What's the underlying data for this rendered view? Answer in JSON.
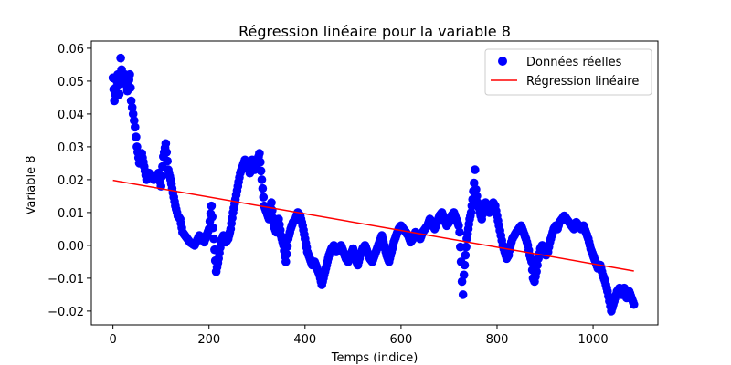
{
  "chart_data": {
    "type": "scatter",
    "title": "Régression linéaire pour la variable 8",
    "xlabel": "Temps (indice)",
    "ylabel": "Variable 8",
    "xlim": [
      -45,
      1135
    ],
    "ylim": [
      -0.0242,
      0.0622
    ],
    "xticks": [
      0,
      200,
      400,
      600,
      800,
      1000
    ],
    "xtick_labels": [
      "0",
      "200",
      "400",
      "600",
      "800",
      "1000"
    ],
    "yticks": [
      -0.02,
      -0.01,
      0.0,
      0.01,
      0.02,
      0.03,
      0.04,
      0.05,
      0.06
    ],
    "ytick_labels": [
      "−0.02",
      "−0.01",
      "0.00",
      "0.01",
      "0.02",
      "0.03",
      "0.04",
      "0.05",
      "0.06"
    ],
    "grid": false,
    "legend_position": "top-right",
    "series": [
      {
        "name": "Données réelles",
        "kind": "scatter",
        "color": "#0000ff",
        "keypoints": [
          [
            0,
            0.051
          ],
          [
            3,
            0.044
          ],
          [
            6,
            0.048
          ],
          [
            10,
            0.052
          ],
          [
            13,
            0.046
          ],
          [
            16,
            0.057
          ],
          [
            20,
            0.05
          ],
          [
            25,
            0.052
          ],
          [
            30,
            0.047
          ],
          [
            35,
            0.052
          ],
          [
            38,
            0.044
          ],
          [
            42,
            0.04
          ],
          [
            46,
            0.036
          ],
          [
            50,
            0.03
          ],
          [
            55,
            0.025
          ],
          [
            60,
            0.028
          ],
          [
            65,
            0.024
          ],
          [
            70,
            0.02
          ],
          [
            75,
            0.022
          ],
          [
            85,
            0.02
          ],
          [
            95,
            0.022
          ],
          [
            100,
            0.018
          ],
          [
            105,
            0.027
          ],
          [
            110,
            0.031
          ],
          [
            115,
            0.023
          ],
          [
            120,
            0.02
          ],
          [
            125,
            0.016
          ],
          [
            130,
            0.012
          ],
          [
            135,
            0.009
          ],
          [
            140,
            0.008
          ],
          [
            145,
            0.004
          ],
          [
            150,
            0.003
          ],
          [
            160,
            0.001
          ],
          [
            170,
            0.0
          ],
          [
            180,
            0.003
          ],
          [
            190,
            0.001
          ],
          [
            200,
            0.005
          ],
          [
            205,
            0.012
          ],
          [
            210,
            0.002
          ],
          [
            215,
            -0.008
          ],
          [
            220,
            -0.004
          ],
          [
            225,
            0.001
          ],
          [
            230,
            0.003
          ],
          [
            235,
            0.001
          ],
          [
            240,
            0.002
          ],
          [
            245,
            0.005
          ],
          [
            250,
            0.01
          ],
          [
            255,
            0.014
          ],
          [
            260,
            0.018
          ],
          [
            265,
            0.022
          ],
          [
            270,
            0.024
          ],
          [
            275,
            0.026
          ],
          [
            280,
            0.025
          ],
          [
            285,
            0.022
          ],
          [
            290,
            0.026
          ],
          [
            295,
            0.023
          ],
          [
            300,
            0.025
          ],
          [
            305,
            0.028
          ],
          [
            310,
            0.02
          ],
          [
            315,
            0.012
          ],
          [
            320,
            0.01
          ],
          [
            325,
            0.008
          ],
          [
            330,
            0.013
          ],
          [
            335,
            0.006
          ],
          [
            340,
            0.004
          ],
          [
            345,
            0.008
          ],
          [
            350,
            0.003
          ],
          [
            355,
            0.0
          ],
          [
            360,
            -0.005
          ],
          [
            365,
            0.002
          ],
          [
            370,
            0.005
          ],
          [
            375,
            0.007
          ],
          [
            380,
            0.008
          ],
          [
            385,
            0.01
          ],
          [
            390,
            0.009
          ],
          [
            395,
            0.006
          ],
          [
            400,
            0.002
          ],
          [
            405,
            -0.002
          ],
          [
            410,
            -0.004
          ],
          [
            415,
            -0.006
          ],
          [
            420,
            -0.005
          ],
          [
            425,
            -0.007
          ],
          [
            430,
            -0.009
          ],
          [
            435,
            -0.012
          ],
          [
            440,
            -0.009
          ],
          [
            445,
            -0.006
          ],
          [
            450,
            -0.003
          ],
          [
            455,
            -0.001
          ],
          [
            460,
            0.0
          ],
          [
            465,
            -0.002
          ],
          [
            470,
            -0.001
          ],
          [
            475,
            0.0
          ],
          [
            480,
            -0.002
          ],
          [
            485,
            -0.004
          ],
          [
            490,
            -0.005
          ],
          [
            495,
            -0.003
          ],
          [
            500,
            -0.001
          ],
          [
            505,
            -0.004
          ],
          [
            510,
            -0.006
          ],
          [
            515,
            -0.003
          ],
          [
            520,
            -0.001
          ],
          [
            525,
            0.0
          ],
          [
            530,
            -0.002
          ],
          [
            535,
            -0.004
          ],
          [
            540,
            -0.005
          ],
          [
            545,
            -0.003
          ],
          [
            550,
            -0.001
          ],
          [
            555,
            0.001
          ],
          [
            560,
            0.003
          ],
          [
            565,
            0.0
          ],
          [
            570,
            -0.003
          ],
          [
            575,
            -0.005
          ],
          [
            580,
            -0.002
          ],
          [
            585,
            0.001
          ],
          [
            590,
            0.003
          ],
          [
            595,
            0.005
          ],
          [
            600,
            0.006
          ],
          [
            605,
            0.005
          ],
          [
            610,
            0.004
          ],
          [
            615,
            0.003
          ],
          [
            620,
            0.001
          ],
          [
            625,
            0.002
          ],
          [
            630,
            0.004
          ],
          [
            635,
            0.003
          ],
          [
            640,
            0.002
          ],
          [
            645,
            0.004
          ],
          [
            650,
            0.005
          ],
          [
            655,
            0.006
          ],
          [
            660,
            0.008
          ],
          [
            665,
            0.007
          ],
          [
            670,
            0.005
          ],
          [
            675,
            0.007
          ],
          [
            680,
            0.009
          ],
          [
            685,
            0.01
          ],
          [
            690,
            0.008
          ],
          [
            695,
            0.006
          ],
          [
            700,
            0.007
          ],
          [
            705,
            0.009
          ],
          [
            710,
            0.01
          ],
          [
            715,
            0.008
          ],
          [
            720,
            0.006
          ],
          [
            722,
            0.004
          ],
          [
            725,
            -0.005
          ],
          [
            727,
            -0.011
          ],
          [
            729,
            -0.015
          ],
          [
            731,
            -0.009
          ],
          [
            734,
            -0.003
          ],
          [
            737,
            0.002
          ],
          [
            740,
            0.005
          ],
          [
            743,
            0.008
          ],
          [
            746,
            0.01
          ],
          [
            749,
            0.014
          ],
          [
            752,
            0.019
          ],
          [
            754,
            0.023
          ],
          [
            756,
            0.017
          ],
          [
            760,
            0.013
          ],
          [
            764,
            0.01
          ],
          [
            768,
            0.008
          ],
          [
            772,
            0.011
          ],
          [
            776,
            0.013
          ],
          [
            780,
            0.012
          ],
          [
            784,
            0.01
          ],
          [
            788,
            0.011
          ],
          [
            792,
            0.013
          ],
          [
            796,
            0.012
          ],
          [
            800,
            0.009
          ],
          [
            804,
            0.006
          ],
          [
            808,
            0.003
          ],
          [
            812,
            0.0
          ],
          [
            816,
            -0.002
          ],
          [
            820,
            -0.004
          ],
          [
            824,
            -0.003
          ],
          [
            828,
            0.0
          ],
          [
            832,
            0.002
          ],
          [
            836,
            0.003
          ],
          [
            840,
            0.004
          ],
          [
            845,
            0.005
          ],
          [
            850,
            0.006
          ],
          [
            855,
            0.004
          ],
          [
            860,
            0.002
          ],
          [
            864,
            0.0
          ],
          [
            868,
            -0.003
          ],
          [
            872,
            -0.005
          ],
          [
            875,
            -0.01
          ],
          [
            878,
            -0.011
          ],
          [
            882,
            -0.008
          ],
          [
            886,
            -0.004
          ],
          [
            890,
            -0.001
          ],
          [
            894,
            0.0
          ],
          [
            898,
            -0.002
          ],
          [
            902,
            -0.003
          ],
          [
            906,
            -0.002
          ],
          [
            910,
            0.001
          ],
          [
            914,
            0.003
          ],
          [
            918,
            0.005
          ],
          [
            922,
            0.006
          ],
          [
            926,
            0.005
          ],
          [
            930,
            0.007
          ],
          [
            935,
            0.008
          ],
          [
            940,
            0.009
          ],
          [
            945,
            0.008
          ],
          [
            950,
            0.007
          ],
          [
            955,
            0.006
          ],
          [
            960,
            0.005
          ],
          [
            965,
            0.007
          ],
          [
            970,
            0.006
          ],
          [
            975,
            0.005
          ],
          [
            980,
            0.006
          ],
          [
            985,
            0.004
          ],
          [
            990,
            0.002
          ],
          [
            995,
            -0.001
          ],
          [
            1000,
            -0.003
          ],
          [
            1005,
            -0.005
          ],
          [
            1010,
            -0.007
          ],
          [
            1015,
            -0.006
          ],
          [
            1020,
            -0.009
          ],
          [
            1025,
            -0.011
          ],
          [
            1030,
            -0.014
          ],
          [
            1034,
            -0.017
          ],
          [
            1038,
            -0.02
          ],
          [
            1042,
            -0.018
          ],
          [
            1046,
            -0.016
          ],
          [
            1050,
            -0.014
          ],
          [
            1055,
            -0.013
          ],
          [
            1060,
            -0.015
          ],
          [
            1065,
            -0.013
          ],
          [
            1070,
            -0.016
          ],
          [
            1075,
            -0.014
          ],
          [
            1080,
            -0.016
          ],
          [
            1085,
            -0.018
          ]
        ]
      },
      {
        "name": "Régression linéaire",
        "kind": "line",
        "color": "#ff0000",
        "x": [
          0,
          1085
        ],
        "y": [
          0.0198,
          -0.0078
        ]
      }
    ]
  }
}
